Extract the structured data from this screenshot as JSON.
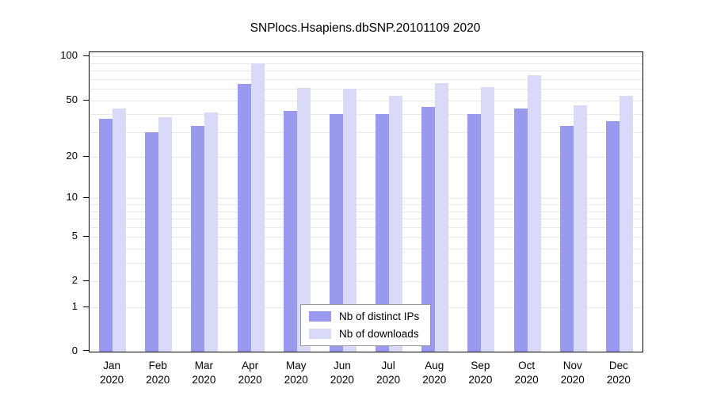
{
  "chart_data": {
    "type": "bar",
    "title": "SNPlocs.Hsapiens.dbSNP.20101109 2020",
    "categories": [
      "Jan 2020",
      "Feb 2020",
      "Mar 2020",
      "Apr 2020",
      "May 2020",
      "Jun 2020",
      "Jul 2020",
      "Aug 2020",
      "Sep 2020",
      "Oct 2020",
      "Nov 2020",
      "Dec 2020"
    ],
    "series": [
      {
        "name": "Nb of distinct IPs",
        "color": "#9999ee",
        "values": [
          37,
          30,
          33,
          65,
          42,
          40,
          40,
          45,
          40,
          44,
          33,
          36
        ]
      },
      {
        "name": "Nb of downloads",
        "color": "#d9d9f8",
        "values": [
          44,
          38,
          41,
          90,
          61,
          60,
          54,
          66,
          62,
          74,
          46,
          54
        ]
      }
    ],
    "y_ticks": [
      100,
      50,
      20,
      10,
      5,
      2,
      1,
      0
    ],
    "grid_values": [
      1,
      2,
      3,
      4,
      5,
      6,
      7,
      8,
      9,
      10,
      20,
      30,
      40,
      50,
      60,
      70,
      80,
      90,
      100
    ],
    "scale": "log1p",
    "y_axis_top_value": 107,
    "grid": true,
    "legend_position": "inside-bottom-center",
    "xlabel": "",
    "ylabel": ""
  }
}
